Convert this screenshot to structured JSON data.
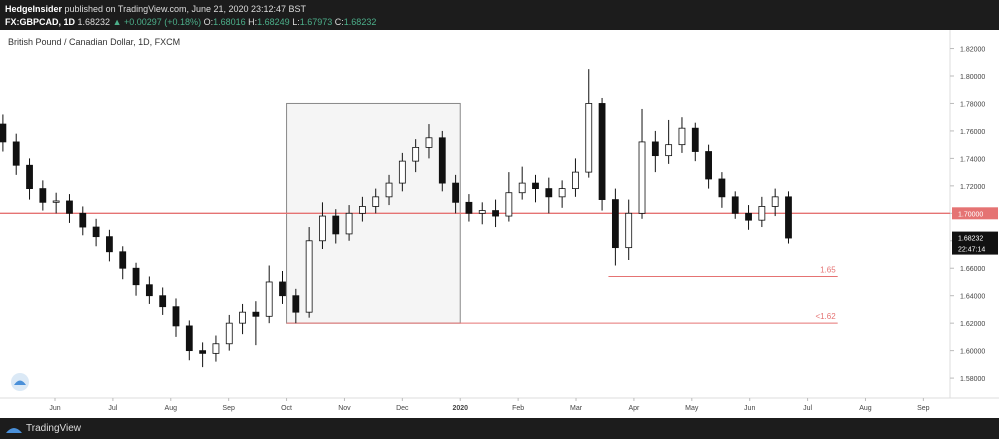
{
  "header": {
    "author": "HedgeInsider",
    "published": "published on TradingView.com, June 21, 2020 23:12:47 BST",
    "symbol": "FX:GBPCAD, 1D",
    "price": "1.68232",
    "change": "▲ +0.00297 (+0.18%)",
    "ohlc": [
      {
        "key": "O:",
        "value": "1.68016"
      },
      {
        "key": "H:",
        "value": "1.68249"
      },
      {
        "key": "L:",
        "value": "1.67973"
      },
      {
        "key": "C:",
        "value": "1.68232"
      }
    ]
  },
  "chart": {
    "type": "candlestick",
    "title": "British Pound / Canadian Dollar, 1D, FXCM",
    "x": [
      -0.9,
      -0.67,
      -0.44,
      -0.21,
      0.02,
      0.25,
      0.48,
      0.71,
      0.94,
      1.17,
      1.4,
      1.63,
      1.86,
      2.09,
      2.32,
      2.55,
      2.78,
      3.01,
      3.24,
      3.47,
      3.7,
      3.93,
      4.16,
      4.39,
      4.62,
      4.85,
      5.08,
      5.31,
      5.54,
      5.77,
      6.0,
      6.23,
      6.46,
      6.69,
      6.92,
      7.15,
      7.38,
      7.61,
      7.84,
      8.07,
      8.3,
      8.53,
      8.76,
      8.99,
      9.22,
      9.45,
      9.68,
      9.91,
      10.14,
      10.37,
      10.6,
      10.83,
      11.06,
      11.29,
      11.52,
      11.75,
      11.98,
      12.21,
      12.44,
      12.67
    ],
    "open": [
      1.765,
      1.752,
      1.735,
      1.718,
      1.708,
      1.709,
      1.7,
      1.69,
      1.683,
      1.672,
      1.66,
      1.648,
      1.64,
      1.632,
      1.618,
      1.6,
      1.598,
      1.605,
      1.62,
      1.628,
      1.625,
      1.65,
      1.64,
      1.628,
      1.68,
      1.698,
      1.685,
      1.7,
      1.705,
      1.712,
      1.722,
      1.738,
      1.748,
      1.755,
      1.722,
      1.708,
      1.7,
      1.702,
      1.698,
      1.715,
      1.722,
      1.718,
      1.712,
      1.718,
      1.73,
      1.78,
      1.71,
      1.675,
      1.7,
      1.752,
      1.742,
      1.75,
      1.762,
      1.745,
      1.725,
      1.712,
      1.7,
      1.695,
      1.705,
      1.712
    ],
    "high": [
      1.772,
      1.758,
      1.74,
      1.724,
      1.715,
      1.714,
      1.705,
      1.696,
      1.688,
      1.676,
      1.664,
      1.654,
      1.646,
      1.638,
      1.622,
      1.606,
      1.611,
      1.626,
      1.634,
      1.636,
      1.662,
      1.658,
      1.645,
      1.69,
      1.708,
      1.703,
      1.706,
      1.712,
      1.718,
      1.728,
      1.744,
      1.754,
      1.765,
      1.76,
      1.728,
      1.714,
      1.708,
      1.71,
      1.73,
      1.734,
      1.728,
      1.726,
      1.724,
      1.74,
      1.805,
      1.784,
      1.718,
      1.71,
      1.776,
      1.76,
      1.768,
      1.77,
      1.766,
      1.75,
      1.73,
      1.716,
      1.706,
      1.712,
      1.718,
      1.716
    ],
    "low": [
      1.745,
      1.728,
      1.71,
      1.702,
      1.7,
      1.693,
      1.684,
      1.676,
      1.665,
      1.652,
      1.64,
      1.634,
      1.626,
      1.61,
      1.593,
      1.588,
      1.592,
      1.6,
      1.612,
      1.604,
      1.62,
      1.634,
      1.62,
      1.624,
      1.674,
      1.678,
      1.68,
      1.694,
      1.7,
      1.706,
      1.716,
      1.73,
      1.74,
      1.716,
      1.7,
      1.694,
      1.692,
      1.69,
      1.694,
      1.71,
      1.708,
      1.7,
      1.704,
      1.712,
      1.726,
      1.702,
      1.662,
      1.666,
      1.696,
      1.73,
      1.736,
      1.744,
      1.738,
      1.718,
      1.704,
      1.696,
      1.688,
      1.69,
      1.698,
      1.678
    ],
    "close": [
      1.752,
      1.735,
      1.718,
      1.708,
      1.709,
      1.7,
      1.69,
      1.683,
      1.672,
      1.66,
      1.648,
      1.64,
      1.632,
      1.618,
      1.6,
      1.598,
      1.605,
      1.62,
      1.628,
      1.625,
      1.65,
      1.64,
      1.628,
      1.68,
      1.698,
      1.685,
      1.7,
      1.705,
      1.712,
      1.722,
      1.738,
      1.748,
      1.755,
      1.722,
      1.708,
      1.7,
      1.702,
      1.698,
      1.715,
      1.722,
      1.718,
      1.712,
      1.718,
      1.73,
      1.78,
      1.71,
      1.675,
      1.7,
      1.752,
      1.742,
      1.75,
      1.762,
      1.745,
      1.725,
      1.712,
      1.7,
      1.695,
      1.705,
      1.712,
      1.682
    ],
    "up_color": "#ffffff",
    "down_color": "#111111",
    "xlim": [
      -0.95,
      15.46
    ],
    "ylim": [
      1.5655,
      1.8335
    ],
    "xticks": [
      {
        "value": 0,
        "label": "Jun"
      },
      {
        "value": 1,
        "label": "Jul"
      },
      {
        "value": 2,
        "label": "Aug"
      },
      {
        "value": 3,
        "label": "Sep"
      },
      {
        "value": 4,
        "label": "Oct"
      },
      {
        "value": 5,
        "label": "Nov"
      },
      {
        "value": 6,
        "label": "Dec"
      },
      {
        "value": 7,
        "label": "2020"
      },
      {
        "value": 8,
        "label": "Feb"
      },
      {
        "value": 9,
        "label": "Mar"
      },
      {
        "value": 10,
        "label": "Apr"
      },
      {
        "value": 11,
        "label": "May"
      },
      {
        "value": 12,
        "label": "Jun"
      },
      {
        "value": 13,
        "label": "Jul"
      },
      {
        "value": 14,
        "label": "Aug"
      },
      {
        "value": 15,
        "label": "Sep"
      }
    ],
    "yticks": [
      {
        "value": 1.58,
        "label": "1.58000"
      },
      {
        "value": 1.6,
        "label": "1.60000"
      },
      {
        "value": 1.62,
        "label": "1.62000"
      },
      {
        "value": 1.64,
        "label": "1.64000"
      },
      {
        "value": 1.66,
        "label": "1.66000"
      },
      {
        "value": 1.68,
        "label": "1.68000"
      },
      {
        "value": 1.7,
        "label": "1.70000"
      },
      {
        "value": 1.72,
        "label": "1.72000"
      },
      {
        "value": 1.74,
        "label": "1.74000"
      },
      {
        "value": 1.76,
        "label": "1.76000"
      },
      {
        "value": 1.78,
        "label": "1.78000"
      },
      {
        "value": 1.8,
        "label": "1.80000"
      },
      {
        "value": 1.82,
        "label": "1.82000"
      }
    ],
    "hline": {
      "value": 1.7,
      "label": "1.70000",
      "color": "#e57373"
    },
    "box": {
      "x": [
        4,
        7
      ],
      "y": [
        1.62,
        1.78
      ]
    },
    "levels": [
      {
        "value": 1.654,
        "label": "1.65",
        "x": [
          9.56,
          13.52
        ]
      },
      {
        "value": 1.62,
        "label": "<1.62",
        "x": [
          4,
          13.52
        ]
      }
    ],
    "level_color": "#e57373",
    "last_price": {
      "value": 1.68232,
      "label": "1.68232"
    },
    "countdown": "22:47:14"
  }
}
